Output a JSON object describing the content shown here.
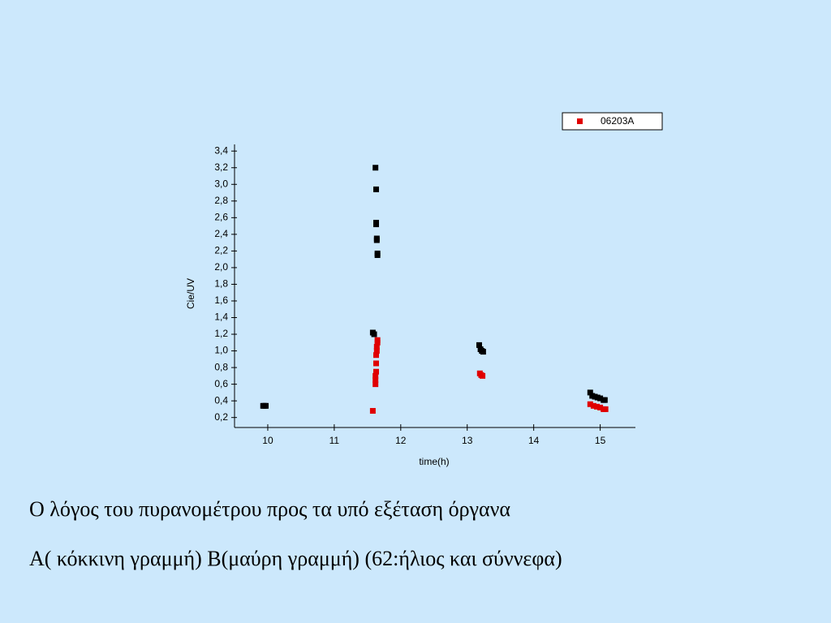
{
  "chart_data": {
    "type": "scatter",
    "x_label": "time(h)",
    "y_label": "Cie/UV",
    "xlim": [
      9.5,
      15.53
    ],
    "ylim": [
      0.08,
      3.48
    ],
    "xticks": [
      10,
      11,
      12,
      13,
      14,
      15
    ],
    "yticks": [
      {
        "value": 0.2,
        "label": "0,2"
      },
      {
        "value": 0.4,
        "label": "0,4"
      },
      {
        "value": 0.6,
        "label": "0,6"
      },
      {
        "value": 0.8,
        "label": "0,8"
      },
      {
        "value": 1.0,
        "label": "1,0"
      },
      {
        "value": 1.2,
        "label": "1,2"
      },
      {
        "value": 1.4,
        "label": "1,4"
      },
      {
        "value": 1.6,
        "label": "1,6"
      },
      {
        "value": 1.8,
        "label": "1,8"
      },
      {
        "value": 2.0,
        "label": "2,0"
      },
      {
        "value": 2.2,
        "label": "2,2"
      },
      {
        "value": 2.4,
        "label": "2,4"
      },
      {
        "value": 2.6,
        "label": "2,6"
      },
      {
        "value": 2.8,
        "label": "2,8"
      },
      {
        "value": 3.0,
        "label": "3,0"
      },
      {
        "value": 3.2,
        "label": "3,2"
      },
      {
        "value": 3.4,
        "label": "3,4"
      }
    ],
    "legend": "top-right",
    "series": [
      {
        "color": "#000000",
        "x": [
          9.93,
          9.95,
          9.97,
          11.58,
          11.6,
          11.62,
          11.63,
          11.63,
          11.63,
          11.64,
          11.64,
          11.65,
          11.65,
          13.18,
          13.2,
          13.22,
          13.24,
          14.85,
          14.88,
          14.92,
          14.96,
          15.0,
          15.05,
          15.07
        ],
        "values": [
          0.34,
          0.34,
          0.34,
          1.22,
          1.2,
          3.2,
          2.94,
          2.54,
          2.52,
          2.35,
          2.33,
          2.17,
          2.15,
          1.07,
          1.02,
          1.0,
          0.99,
          0.5,
          0.46,
          0.45,
          0.44,
          0.43,
          0.41,
          0.41
        ]
      },
      {
        "name": "06203A",
        "color": "#e00000",
        "x": [
          11.58,
          11.62,
          11.62,
          11.62,
          11.63,
          11.63,
          11.63,
          11.64,
          11.64,
          11.65,
          11.65,
          13.19,
          13.21,
          13.23,
          14.85,
          14.9,
          14.95,
          15.0,
          15.05,
          15.08
        ],
        "values": [
          0.28,
          0.6,
          0.65,
          0.7,
          0.75,
          0.85,
          0.95,
          1.0,
          1.05,
          1.1,
          1.13,
          0.73,
          0.71,
          0.7,
          0.36,
          0.34,
          0.33,
          0.32,
          0.3,
          0.3
        ]
      }
    ]
  },
  "caption": [
    "Ο λόγος του πυρανομέτρου προς τα υπό εξέταση όργανα",
    "Α( κόκκινη γραμμή)  Β(μαύρη γραμμή) (62:ήλιος και σύννεφα)"
  ]
}
